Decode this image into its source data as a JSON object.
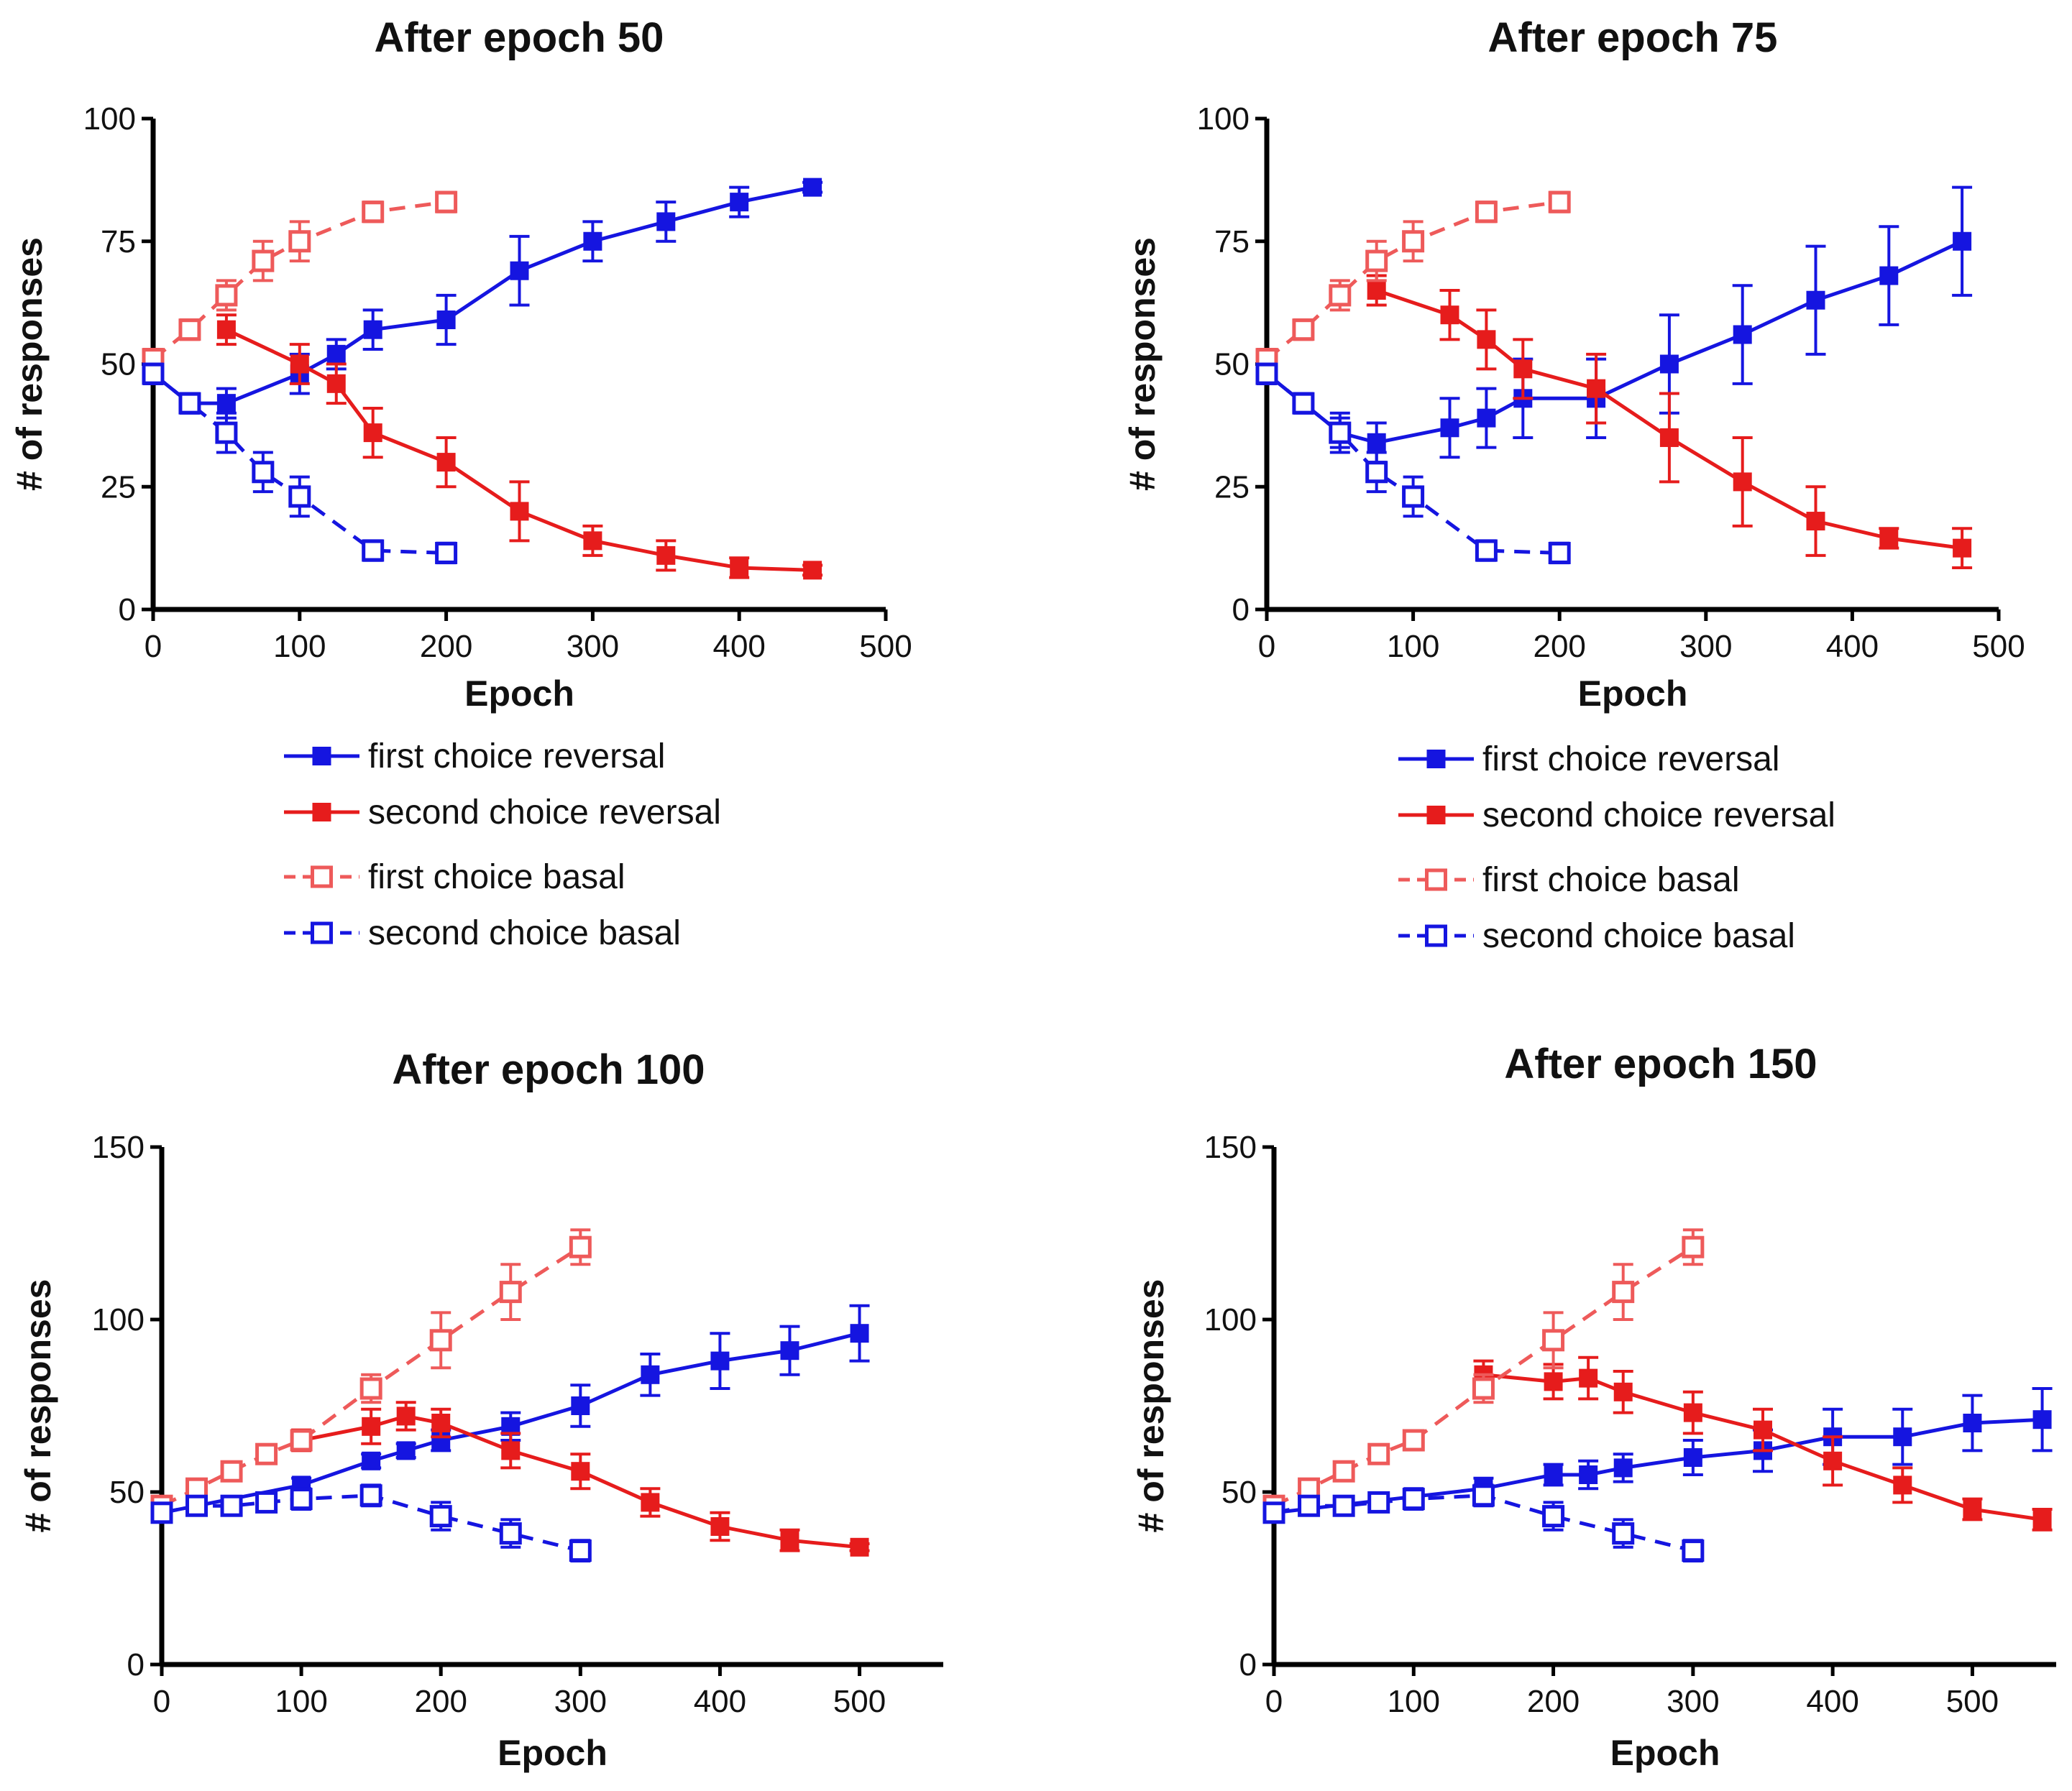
{
  "colors": {
    "blue": "#1515e0",
    "red": "#e61c1c",
    "light_red": "#ee5a5a",
    "axis": "#000000"
  },
  "chart_data": [
    {
      "type": "line",
      "title": "After epoch 50",
      "xlabel": "Epoch",
      "ylabel": "# of responses",
      "xlim": [
        0,
        500
      ],
      "ylim": [
        0,
        100
      ],
      "xticks": [
        0,
        100,
        200,
        300,
        400,
        500
      ],
      "yticks": [
        0,
        25,
        50,
        75,
        100
      ],
      "x_tick_labels": [
        "0",
        "100",
        "200",
        "300",
        "400",
        "500"
      ],
      "y_tick_labels": [
        "0",
        "25",
        "50",
        "75",
        "100"
      ],
      "legend": [
        "first choice reversal",
        "second choice reversal",
        "first choice basal",
        "second choice basal"
      ],
      "series": [
        {
          "name": "first choice reversal",
          "color": "blue",
          "style": "solid",
          "marker": "filled",
          "x": [
            0,
            25,
            50,
            100,
            125,
            150,
            200,
            250,
            300,
            350,
            400,
            450
          ],
          "y": [
            48,
            42,
            42,
            48,
            52,
            57,
            59,
            69,
            75,
            79,
            83,
            86
          ],
          "err": [
            2,
            2,
            3,
            4,
            3,
            4,
            5,
            7,
            4,
            4,
            3,
            1
          ]
        },
        {
          "name": "second choice reversal",
          "color": "red",
          "style": "solid",
          "marker": "filled",
          "x": [
            50,
            100,
            125,
            150,
            200,
            250,
            300,
            350,
            400,
            450
          ],
          "y": [
            57,
            50,
            46,
            36,
            30,
            20,
            14,
            11,
            8.5,
            8
          ],
          "err": [
            3,
            4,
            4,
            5,
            5,
            6,
            3,
            3,
            2,
            1
          ]
        },
        {
          "name": "first choice basal",
          "color": "light_red",
          "style": "dashed",
          "marker": "open",
          "x": [
            0,
            25,
            50,
            75,
            100,
            150,
            200
          ],
          "y": [
            51,
            57,
            64,
            71,
            75,
            81,
            83
          ],
          "err": [
            2,
            2,
            3,
            4,
            4,
            2,
            2
          ]
        },
        {
          "name": "second choice basal",
          "color": "blue",
          "style": "dashed",
          "marker": "open",
          "x": [
            0,
            25,
            50,
            75,
            100,
            150,
            200
          ],
          "y": [
            48,
            42,
            36,
            28,
            23,
            12,
            11.5
          ],
          "err": [
            2,
            2,
            4,
            4,
            4,
            2,
            2
          ]
        }
      ]
    },
    {
      "type": "line",
      "title": "After epoch 75",
      "xlabel": "Epoch",
      "ylabel": "# of responses",
      "xlim": [
        0,
        500
      ],
      "ylim": [
        0,
        100
      ],
      "xticks": [
        0,
        100,
        200,
        300,
        400,
        500
      ],
      "yticks": [
        0,
        25,
        50,
        75,
        100
      ],
      "x_tick_labels": [
        "0",
        "100",
        "200",
        "300",
        "400",
        "500"
      ],
      "y_tick_labels": [
        "0",
        "25",
        "50",
        "75",
        "100"
      ],
      "legend": [
        "first choice reversal",
        "second choice reversal",
        "first choice basal",
        "second choice basal"
      ],
      "series": [
        {
          "name": "first choice reversal",
          "color": "blue",
          "style": "solid",
          "marker": "filled",
          "x": [
            0,
            25,
            50,
            75,
            125,
            150,
            175,
            225,
            275,
            325,
            375,
            425,
            475
          ],
          "y": [
            48,
            42,
            36,
            34,
            37,
            39,
            43,
            43,
            50,
            56,
            63,
            68,
            75
          ],
          "err": [
            2,
            2,
            3,
            4,
            6,
            6,
            8,
            8,
            10,
            10,
            11,
            10,
            11
          ]
        },
        {
          "name": "second choice reversal",
          "color": "red",
          "style": "solid",
          "marker": "filled",
          "x": [
            75,
            125,
            150,
            175,
            225,
            275,
            325,
            375,
            425,
            475
          ],
          "y": [
            65,
            60,
            55,
            49,
            45,
            35,
            26,
            18,
            14.5,
            12.5
          ],
          "err": [
            3,
            5,
            6,
            6,
            7,
            9,
            9,
            7,
            2,
            4
          ]
        },
        {
          "name": "first choice basal",
          "color": "light_red",
          "style": "dashed",
          "marker": "open",
          "x": [
            0,
            25,
            50,
            75,
            100,
            150,
            200
          ],
          "y": [
            51,
            57,
            64,
            71,
            75,
            81,
            83
          ],
          "err": [
            2,
            2,
            3,
            4,
            4,
            2,
            2
          ]
        },
        {
          "name": "second choice basal",
          "color": "blue",
          "style": "dashed",
          "marker": "open",
          "x": [
            0,
            25,
            50,
            75,
            100,
            150,
            200
          ],
          "y": [
            48,
            42,
            36,
            28,
            23,
            12,
            11.5
          ],
          "err": [
            2,
            2,
            4,
            4,
            4,
            2,
            2
          ]
        }
      ]
    },
    {
      "type": "line",
      "title": "After epoch 100",
      "xlabel": "Epoch",
      "ylabel": "# of responses",
      "xlim": [
        0,
        560
      ],
      "ylim": [
        0,
        150
      ],
      "xticks": [
        0,
        100,
        200,
        300,
        400,
        500
      ],
      "yticks": [
        0,
        50,
        100,
        150
      ],
      "x_tick_labels": [
        "0",
        "100",
        "200",
        "300",
        "400",
        "500"
      ],
      "y_tick_labels": [
        "0",
        "50",
        "100",
        "150"
      ],
      "series": [
        {
          "name": "first choice reversal",
          "color": "blue",
          "style": "solid",
          "marker": "filled",
          "x": [
            0,
            100,
            150,
            175,
            200,
            250,
            300,
            350,
            400,
            450,
            500
          ],
          "y": [
            44,
            52,
            59,
            62,
            65,
            69,
            75,
            84,
            88,
            91,
            96
          ],
          "err": [
            2,
            2,
            2,
            2,
            3,
            4,
            6,
            6,
            8,
            7,
            8
          ]
        },
        {
          "name": "second choice reversal",
          "color": "red",
          "style": "solid",
          "marker": "filled",
          "x": [
            100,
            150,
            175,
            200,
            250,
            300,
            350,
            400,
            450,
            500
          ],
          "y": [
            65,
            69,
            72,
            70,
            62,
            56,
            47,
            40,
            36,
            34
          ],
          "err": [
            3,
            5,
            4,
            4,
            5,
            5,
            4,
            4,
            3,
            1
          ]
        },
        {
          "name": "first choice basal",
          "color": "light_red",
          "style": "dashed",
          "marker": "open",
          "x": [
            0,
            25,
            50,
            75,
            100,
            150,
            200,
            250,
            300
          ],
          "y": [
            46,
            51,
            56,
            61,
            65,
            80,
            94,
            108,
            121
          ],
          "err": [
            2,
            2,
            2,
            2,
            2,
            4,
            8,
            8,
            5
          ]
        },
        {
          "name": "second choice basal",
          "color": "blue",
          "style": "dashed",
          "marker": "open",
          "x": [
            0,
            25,
            50,
            75,
            100,
            150,
            200,
            250,
            300
          ],
          "y": [
            44,
            46,
            46,
            47,
            48,
            49,
            43,
            38,
            33
          ],
          "err": [
            2,
            2,
            2,
            2,
            3,
            3,
            4,
            4,
            3
          ]
        }
      ]
    },
    {
      "type": "line",
      "title": "After epoch 150",
      "xlabel": "Epoch",
      "ylabel": "# of responses",
      "xlim": [
        0,
        560
      ],
      "ylim": [
        0,
        150
      ],
      "xticks": [
        0,
        100,
        200,
        300,
        400,
        500
      ],
      "yticks": [
        0,
        50,
        100,
        150
      ],
      "x_tick_labels": [
        "0",
        "100",
        "200",
        "300",
        "400",
        "500"
      ],
      "y_tick_labels": [
        "0",
        "50",
        "100",
        "150"
      ],
      "series": [
        {
          "name": "first choice reversal",
          "color": "blue",
          "style": "solid",
          "marker": "filled",
          "x": [
            0,
            150,
            200,
            225,
            250,
            300,
            350,
            400,
            450,
            500,
            550
          ],
          "y": [
            44,
            51,
            55,
            55,
            57,
            60,
            62,
            66,
            66,
            70,
            71
          ],
          "err": [
            2,
            3,
            3,
            4,
            4,
            5,
            6,
            8,
            8,
            8,
            9
          ]
        },
        {
          "name": "second choice reversal",
          "color": "red",
          "style": "solid",
          "marker": "filled",
          "x": [
            150,
            200,
            225,
            250,
            300,
            350,
            400,
            450,
            500,
            550
          ],
          "y": [
            84,
            82,
            83,
            79,
            73,
            68,
            59,
            52,
            45,
            42
          ],
          "err": [
            4,
            5,
            6,
            6,
            6,
            6,
            7,
            5,
            3,
            3
          ]
        },
        {
          "name": "first choice basal",
          "color": "light_red",
          "style": "dashed",
          "marker": "open",
          "x": [
            0,
            25,
            50,
            75,
            100,
            150,
            200,
            250,
            300
          ],
          "y": [
            46,
            51,
            56,
            61,
            65,
            80,
            94,
            108,
            121
          ],
          "err": [
            2,
            2,
            2,
            2,
            2,
            4,
            8,
            8,
            5
          ]
        },
        {
          "name": "second choice basal",
          "color": "blue",
          "style": "dashed",
          "marker": "open",
          "x": [
            0,
            25,
            50,
            75,
            100,
            150,
            200,
            250,
            300
          ],
          "y": [
            44,
            46,
            46,
            47,
            48,
            49,
            43,
            38,
            33
          ],
          "err": [
            2,
            2,
            2,
            2,
            3,
            3,
            4,
            4,
            3
          ]
        }
      ]
    }
  ]
}
